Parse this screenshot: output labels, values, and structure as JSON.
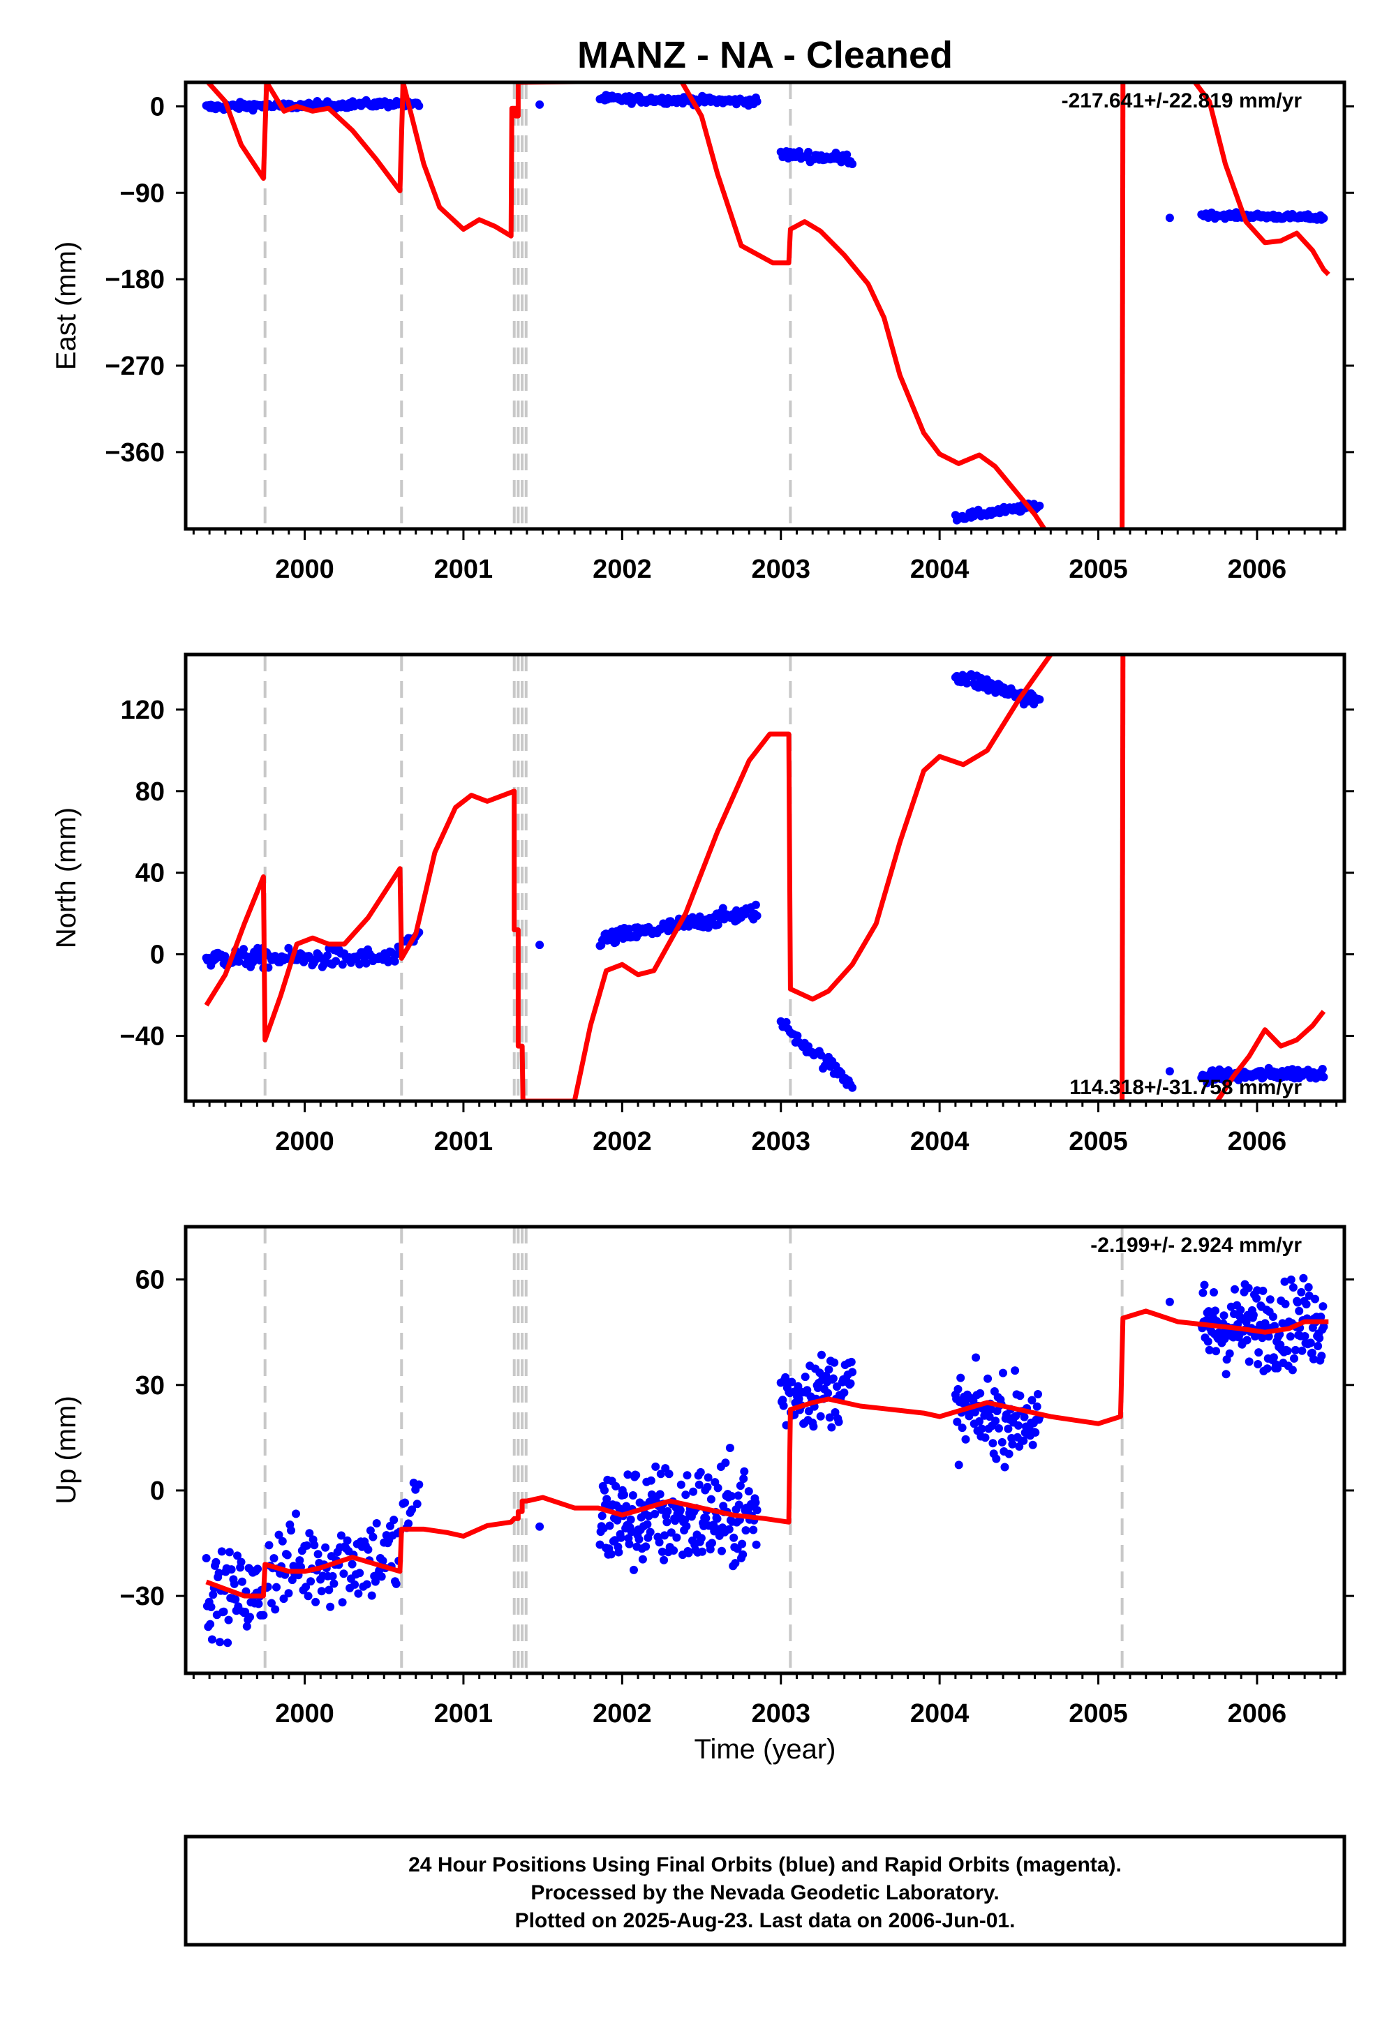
{
  "chart_data": {
    "title": "MANZ  - NA - Cleaned",
    "xlabel": "Time (year)",
    "xlim": [
      1999.25,
      2006.55
    ],
    "x_ticks": [
      2000,
      2001,
      2002,
      2003,
      2004,
      2005,
      2006
    ],
    "equipment_change_epochs": [
      1999.75,
      2000.61,
      2001.32,
      2001.345,
      2001.37,
      2001.395,
      2003.06,
      2005.15
    ],
    "panels": [
      {
        "type": "scatter",
        "component": "east",
        "ylabel": "East (mm)",
        "ylim": [
          -440,
          25
        ],
        "y_ticks": [
          0,
          -90,
          -180,
          -270,
          -360
        ],
        "y_tick_labels": [
          "0",
          "−90",
          "−180",
          "−270",
          "−360"
        ],
        "rate_text": "-217.641+/-22.819 mm/yr",
        "observations": [
          {
            "x0": 1999.38,
            "x1": 1999.74,
            "y0": -1,
            "y1": 1,
            "spread": 4,
            "n": 50
          },
          {
            "x0": 1999.76,
            "x1": 2000.6,
            "y0": 0,
            "y1": 3,
            "spread": 4,
            "n": 80
          },
          {
            "x0": 2000.62,
            "x1": 2000.72,
            "y0": 2,
            "y1": 2,
            "spread": 3,
            "n": 10
          },
          {
            "x0": 2001.48,
            "x1": 2001.48,
            "y0": 2,
            "y1": 2,
            "spread": 1,
            "n": 1
          },
          {
            "x0": 2001.86,
            "x1": 2002.85,
            "y0": 8,
            "y1": 5,
            "spread": 4,
            "n": 130
          },
          {
            "x0": 2003.0,
            "x1": 2003.45,
            "y0": -50,
            "y1": -55,
            "spread": 6,
            "n": 40
          },
          {
            "x0": 2004.1,
            "x1": 2004.63,
            "y0": -428,
            "y1": -416,
            "spread": 4,
            "n": 60
          },
          {
            "x0": 2005.45,
            "x1": 2005.45,
            "y0": -116,
            "y1": -116,
            "spread": 1,
            "n": 1
          },
          {
            "x0": 2005.65,
            "x1": 2006.42,
            "y0": -113,
            "y1": -116,
            "spread": 3,
            "n": 110
          }
        ],
        "model": [
          [
            1999.38,
            27
          ],
          [
            1999.5,
            5
          ],
          [
            1999.6,
            -40
          ],
          [
            1999.74,
            -75
          ],
          [
            1999.76,
            25
          ],
          [
            1999.87,
            -5
          ],
          [
            1999.95,
            0
          ],
          [
            2000.05,
            -5
          ],
          [
            2000.15,
            -2
          ],
          [
            2000.3,
            -25
          ],
          [
            2000.45,
            -55
          ],
          [
            2000.6,
            -88
          ],
          [
            2000.62,
            25
          ],
          [
            2000.75,
            -60
          ],
          [
            2000.85,
            -105
          ],
          [
            2001.0,
            -128
          ],
          [
            2001.1,
            -118
          ],
          [
            2001.2,
            -125
          ],
          [
            2001.3,
            -135
          ],
          [
            2001.305,
            -2
          ],
          [
            2001.33,
            -2
          ],
          [
            2001.33,
            -10
          ],
          [
            2001.345,
            -10
          ],
          [
            2001.345,
            25
          ],
          [
            2002.37,
            27
          ],
          [
            2002.5,
            -10
          ],
          [
            2002.6,
            -70
          ],
          [
            2002.75,
            -145
          ],
          [
            2002.95,
            -163
          ],
          [
            2003.05,
            -163
          ],
          [
            2003.06,
            -128
          ],
          [
            2003.15,
            -120
          ],
          [
            2003.25,
            -130
          ],
          [
            2003.4,
            -155
          ],
          [
            2003.55,
            -185
          ],
          [
            2003.65,
            -220
          ],
          [
            2003.75,
            -280
          ],
          [
            2003.9,
            -340
          ],
          [
            2004.0,
            -362
          ],
          [
            2004.12,
            -372
          ],
          [
            2004.25,
            -363
          ],
          [
            2004.35,
            -375
          ],
          [
            2004.5,
            -405
          ],
          [
            2004.6,
            -425
          ],
          [
            2004.66,
            -440
          ]
        ],
        "model_segment_2": [
          [
            2005.15,
            -440
          ],
          [
            2005.155,
            25
          ]
        ],
        "model_segment_3": [
          [
            2005.6,
            27
          ],
          [
            2005.7,
            5
          ],
          [
            2005.8,
            -60
          ],
          [
            2005.93,
            -120
          ],
          [
            2006.05,
            -142
          ],
          [
            2006.15,
            -140
          ],
          [
            2006.25,
            -132
          ],
          [
            2006.35,
            -150
          ],
          [
            2006.42,
            -170
          ],
          [
            2006.45,
            -175
          ]
        ]
      },
      {
        "type": "scatter",
        "component": "north",
        "ylabel": "North (mm)",
        "ylim": [
          -72,
          147
        ],
        "y_ticks": [
          120,
          80,
          40,
          0,
          -40
        ],
        "y_tick_labels": [
          "120",
          "80",
          "40",
          "0",
          "−40"
        ],
        "rate_text": "114.318+/-31.758 mm/yr",
        "observations": [
          {
            "x0": 1999.38,
            "x1": 1999.74,
            "y0": -2,
            "y1": -2,
            "spread": 5,
            "n": 50
          },
          {
            "x0": 1999.76,
            "x1": 2000.6,
            "y0": -2,
            "y1": -2,
            "spread": 5,
            "n": 80
          },
          {
            "x0": 2000.62,
            "x1": 2000.72,
            "y0": 5,
            "y1": 9,
            "spread": 4,
            "n": 10
          },
          {
            "x0": 2001.48,
            "x1": 2001.48,
            "y0": 5,
            "y1": 5,
            "spread": 1,
            "n": 1
          },
          {
            "x0": 2001.86,
            "x1": 2002.85,
            "y0": 7,
            "y1": 21,
            "spread": 4,
            "n": 130
          },
          {
            "x0": 2003.0,
            "x1": 2003.45,
            "y0": -34,
            "y1": -64,
            "spread": 4,
            "n": 40
          },
          {
            "x0": 2004.1,
            "x1": 2004.63,
            "y0": 137,
            "y1": 124,
            "spread": 4,
            "n": 60
          },
          {
            "x0": 2005.45,
            "x1": 2005.45,
            "y0": -58,
            "y1": -58,
            "spread": 1,
            "n": 1
          },
          {
            "x0": 2005.65,
            "x1": 2006.42,
            "y0": -60,
            "y1": -58,
            "spread": 3,
            "n": 110
          }
        ],
        "model": [
          [
            1999.38,
            -25
          ],
          [
            1999.5,
            -10
          ],
          [
            1999.62,
            15
          ],
          [
            1999.74,
            38
          ],
          [
            1999.75,
            -42
          ],
          [
            1999.85,
            -20
          ],
          [
            1999.95,
            5
          ],
          [
            2000.05,
            8
          ],
          [
            2000.15,
            5
          ],
          [
            2000.25,
            5
          ],
          [
            2000.4,
            18
          ],
          [
            2000.6,
            42
          ],
          [
            2000.61,
            -2
          ],
          [
            2000.7,
            10
          ],
          [
            2000.82,
            50
          ],
          [
            2000.95,
            72
          ],
          [
            2001.05,
            78
          ],
          [
            2001.15,
            75
          ],
          [
            2001.32,
            80
          ],
          [
            2001.32,
            12
          ],
          [
            2001.345,
            12
          ],
          [
            2001.345,
            -45
          ],
          [
            2001.37,
            -45
          ],
          [
            2001.375,
            -72
          ],
          [
            2001.7,
            -72
          ],
          [
            2001.8,
            -35
          ],
          [
            2001.9,
            -8
          ],
          [
            2002.0,
            -5
          ],
          [
            2002.1,
            -10
          ],
          [
            2002.2,
            -8
          ],
          [
            2002.4,
            20
          ],
          [
            2002.6,
            60
          ],
          [
            2002.8,
            95
          ],
          [
            2002.93,
            108
          ],
          [
            2003.05,
            108
          ],
          [
            2003.06,
            -17
          ],
          [
            2003.2,
            -22
          ],
          [
            2003.3,
            -18
          ],
          [
            2003.45,
            -5
          ],
          [
            2003.6,
            15
          ],
          [
            2003.75,
            55
          ],
          [
            2003.9,
            90
          ],
          [
            2004.0,
            97
          ],
          [
            2004.15,
            93
          ],
          [
            2004.3,
            100
          ],
          [
            2004.5,
            125
          ],
          [
            2004.7,
            147
          ]
        ],
        "model_segment_2": [
          [
            2005.15,
            -72
          ],
          [
            2005.155,
            147
          ]
        ],
        "model_segment_3": [
          [
            2005.75,
            -72
          ],
          [
            2005.85,
            -60
          ],
          [
            2005.95,
            -50
          ],
          [
            2006.05,
            -37
          ],
          [
            2006.15,
            -45
          ],
          [
            2006.25,
            -42
          ],
          [
            2006.35,
            -35
          ],
          [
            2006.42,
            -28
          ]
        ]
      },
      {
        "type": "scatter",
        "component": "up",
        "ylabel": "Up (mm)",
        "ylim": [
          -52,
          75
        ],
        "y_ticks": [
          60,
          30,
          0,
          -30
        ],
        "y_tick_labels": [
          "60",
          "30",
          "0",
          "−30"
        ],
        "rate_text": "-2.199+/- 2.924 mm/yr",
        "observations": [
          {
            "x0": 1999.38,
            "x1": 1999.74,
            "y0": -29,
            "y1": -30,
            "spread": 12,
            "n": 60
          },
          {
            "x0": 1999.76,
            "x1": 2000.6,
            "y0": -22,
            "y1": -18,
            "spread": 14,
            "n": 110
          },
          {
            "x0": 2000.62,
            "x1": 2000.72,
            "y0": -6,
            "y1": -6,
            "spread": 12,
            "n": 10
          },
          {
            "x0": 2001.48,
            "x1": 2001.48,
            "y0": -10,
            "y1": -10,
            "spread": 1,
            "n": 1
          },
          {
            "x0": 2001.86,
            "x1": 2002.85,
            "y0": -8,
            "y1": -7,
            "spread": 16,
            "n": 210
          },
          {
            "x0": 2003.0,
            "x1": 2003.45,
            "y0": 27,
            "y1": 30,
            "spread": 11,
            "n": 80
          },
          {
            "x0": 2004.1,
            "x1": 2004.63,
            "y0": 22,
            "y1": 20,
            "spread": 12,
            "n": 100
          },
          {
            "x0": 2005.45,
            "x1": 2005.45,
            "y0": 53,
            "y1": 53,
            "spread": 1,
            "n": 1
          },
          {
            "x0": 2005.65,
            "x1": 2006.42,
            "y0": 46,
            "y1": 48,
            "spread": 13,
            "n": 170
          }
        ],
        "model": [
          [
            1999.38,
            -26
          ],
          [
            1999.5,
            -28
          ],
          [
            1999.62,
            -30
          ],
          [
            1999.74,
            -30
          ],
          [
            1999.75,
            -21
          ],
          [
            1999.9,
            -23
          ],
          [
            2000.0,
            -23
          ],
          [
            2000.1,
            -22
          ],
          [
            2000.3,
            -19
          ],
          [
            2000.45,
            -21
          ],
          [
            2000.6,
            -23
          ],
          [
            2000.61,
            -11
          ],
          [
            2000.75,
            -11
          ],
          [
            2000.9,
            -12
          ],
          [
            2001.0,
            -13
          ],
          [
            2001.15,
            -10
          ],
          [
            2001.3,
            -9
          ],
          [
            2001.32,
            -8
          ],
          [
            2001.345,
            -8
          ],
          [
            2001.345,
            -6
          ],
          [
            2001.37,
            -6
          ],
          [
            2001.37,
            -3
          ],
          [
            2001.4,
            -3
          ],
          [
            2001.5,
            -2
          ],
          [
            2001.7,
            -5
          ],
          [
            2001.85,
            -5
          ],
          [
            2002.0,
            -7
          ],
          [
            2002.15,
            -5
          ],
          [
            2002.3,
            -3
          ],
          [
            2002.5,
            -5
          ],
          [
            2002.7,
            -7
          ],
          [
            2002.9,
            -8
          ],
          [
            2003.05,
            -9
          ],
          [
            2003.06,
            23
          ],
          [
            2003.2,
            25
          ],
          [
            2003.3,
            26
          ],
          [
            2003.5,
            24
          ],
          [
            2003.7,
            23
          ],
          [
            2003.9,
            22
          ],
          [
            2004.0,
            21
          ],
          [
            2004.15,
            23
          ],
          [
            2004.3,
            25
          ],
          [
            2004.5,
            23
          ],
          [
            2004.7,
            21
          ],
          [
            2004.85,
            20
          ],
          [
            2005.0,
            19
          ],
          [
            2005.14,
            21
          ],
          [
            2005.155,
            49
          ],
          [
            2005.3,
            51
          ],
          [
            2005.5,
            48
          ],
          [
            2005.7,
            47
          ],
          [
            2005.9,
            46
          ],
          [
            2006.05,
            45
          ],
          [
            2006.2,
            46
          ],
          [
            2006.3,
            48
          ],
          [
            2006.45,
            48
          ]
        ]
      }
    ],
    "footer": [
      "24 Hour Positions Using Final Orbits (blue) and Rapid Orbits (magenta).",
      "Processed by the Nevada Geodetic Laboratory.",
      "Plotted on 2025-Aug-23. Last data on 2006-Jun-01."
    ],
    "colors": {
      "observations": "#0000ff",
      "model": "#ff0000",
      "equipment_change": "#c8c8c8"
    }
  }
}
